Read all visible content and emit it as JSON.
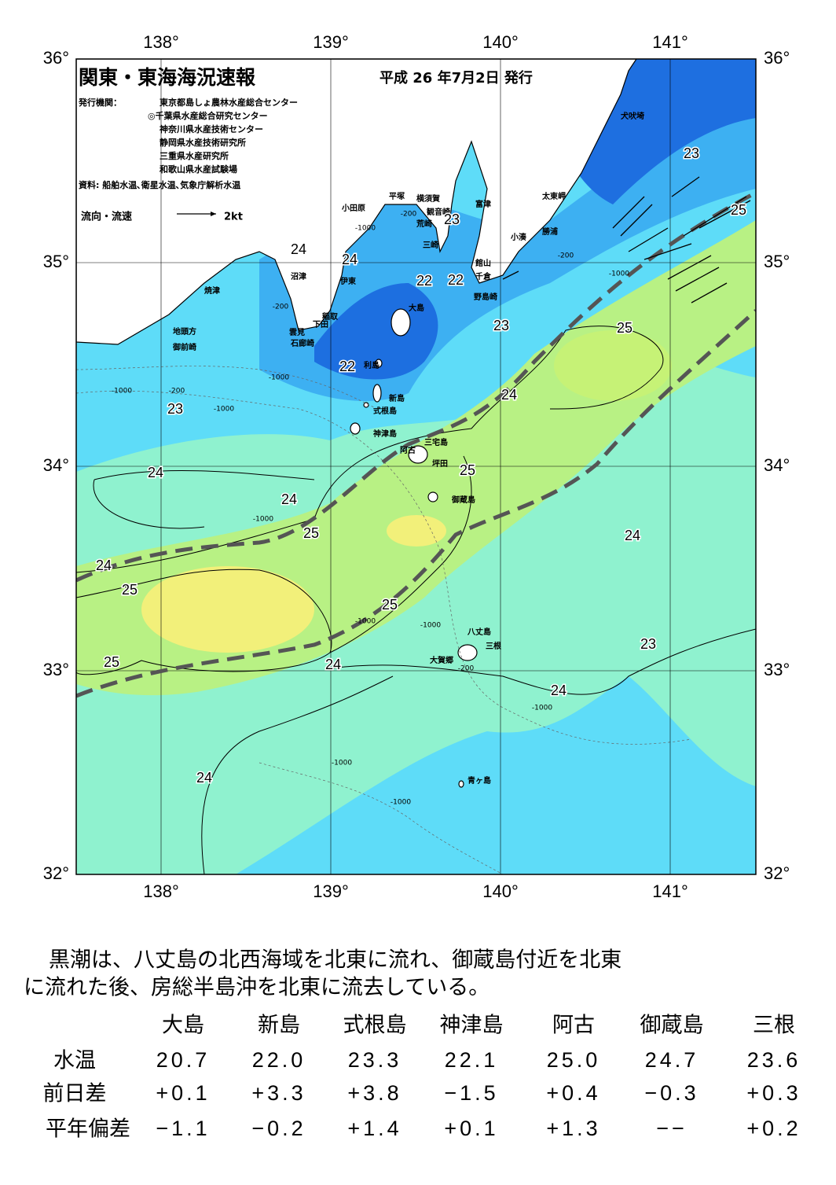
{
  "header": {
    "title": "関東・東海海況速報",
    "date": "平成 26 年7月2日 発行",
    "issuer_label": "発行機関：",
    "issuers": [
      "東京都島しょ農林水産総合センター",
      "◎千葉県水産総合研究センター",
      "神奈川県水産技術センター",
      "静岡県水産技術研究所",
      "三重県水産研究所",
      "和歌山県水産試験場"
    ],
    "sources": "資料: 船舶水温､衛星水温､気象庁解析水温"
  },
  "legend": {
    "label": "流向・流速",
    "scale": "2kt"
  },
  "longitude_labels": [
    "138°",
    "139°",
    "140°",
    "141°"
  ],
  "latitude_labels": [
    "36°",
    "35°",
    "34°",
    "33°",
    "32°"
  ],
  "places": [
    "犬吠埼",
    "太東岬",
    "勝浦",
    "小湊",
    "富津",
    "観音崎",
    "横須賀",
    "平塚",
    "荒崎",
    "三崎",
    "館山",
    "千倉",
    "野島崎",
    "小田原",
    "沼津",
    "伊東",
    "焼津",
    "稲取",
    "下田",
    "雲見",
    "石廊崎",
    "地頭方",
    "御前崎",
    "大島",
    "利島",
    "新島",
    "式根島",
    "神津島",
    "三宅島",
    "阿古",
    "坪田",
    "御蔵島",
    "八丈島",
    "三根",
    "大賀郷",
    "青ヶ島"
  ],
  "isotherm_labels": [
    "23",
    "25",
    "23",
    "24",
    "24",
    "22",
    "22",
    "23",
    "25",
    "22",
    "24",
    "23",
    "25",
    "24",
    "24",
    "25",
    "24",
    "24",
    "25",
    "25",
    "23",
    "25",
    "24",
    "24",
    "24"
  ],
  "depth_labels": [
    "-1000",
    "-200",
    "-200",
    "-1000",
    "-200",
    "-1000",
    "-200",
    "-1000",
    "-1000",
    "-1000",
    "-1000",
    "-1000",
    "-200",
    "-1000",
    "-1000",
    "-1000"
  ],
  "summary": [
    "黒潮は、八丈島の北西海域を北東に流れ、御蔵島付近を北東",
    "に流れた後、房総半島沖を北東に流去している。"
  ],
  "table": {
    "columns": [
      "大島",
      "新島",
      "式根島",
      "神津島",
      "阿古",
      "御蔵島",
      "三根"
    ],
    "rows": [
      {
        "label": "水温",
        "cells": [
          "20.7",
          "22.0",
          "23.3",
          "22.1",
          "25.0",
          "24.7",
          "23.6"
        ]
      },
      {
        "label": "前日差",
        "cells": [
          "+0.1",
          "+3.3",
          "+3.8",
          "−1.5",
          "+0.4",
          "−0.3",
          "+0.3"
        ]
      },
      {
        "label": "平年偏差",
        "cells": [
          "−1.1",
          "−0.2",
          "+1.4",
          "+0.1",
          "+1.3",
          "−−",
          "+0.2"
        ]
      }
    ]
  }
}
